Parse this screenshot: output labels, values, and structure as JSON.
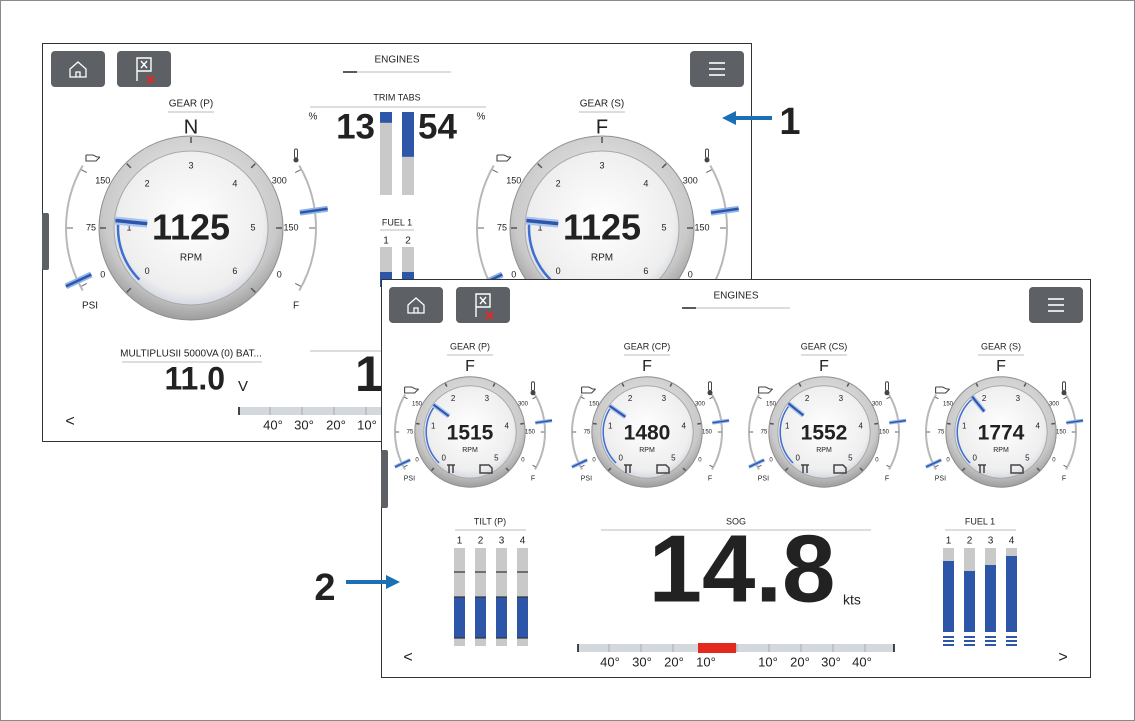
{
  "callouts": [
    "1",
    "2"
  ],
  "screens": [
    {
      "title": "ENGINES",
      "gauges": [
        {
          "gear_label": "GEAR (P)",
          "gear": "N",
          "rpm": 1125
        },
        {
          "gear_label": "GEAR (S)",
          "gear": "F",
          "rpm": 1125
        }
      ],
      "rpm_label": "RPM",
      "rpm_ticks": [
        {
          "value": 0,
          "label": "0"
        },
        {
          "value": 1000,
          "label": "1"
        },
        {
          "value": 2000,
          "label": "2"
        },
        {
          "value": 3000,
          "label": "3"
        },
        {
          "value": 4000,
          "label": "4"
        },
        {
          "value": 5000,
          "label": "5"
        },
        {
          "value": 6000,
          "label": "6"
        }
      ],
      "pressure_ticks": [
        150,
        75,
        0
      ],
      "pressure_unit": "PSI",
      "temp_ticks": [
        300,
        150,
        0
      ],
      "temp_unit": "F",
      "trim_tabs": {
        "title": "TRIM TABS",
        "unit": "%",
        "values": [
          13,
          54
        ]
      },
      "fuel": {
        "title": "FUEL 1",
        "tanks": [
          "1",
          "2"
        ]
      },
      "battery": {
        "title": "MULTIPLUSII 5000VA (0) BAT...",
        "value": "11.0",
        "unit": "V"
      },
      "partial_value": "1",
      "rudder": [
        "40°",
        "30°",
        "20°",
        "10°"
      ],
      "nav": [
        "<"
      ]
    },
    {
      "title": "ENGINES",
      "gauges": [
        {
          "gear_label": "GEAR (P)",
          "gear": "F",
          "rpm": 1515
        },
        {
          "gear_label": "GEAR (CP)",
          "gear": "F",
          "rpm": 1480
        },
        {
          "gear_label": "GEAR (CS)",
          "gear": "F",
          "rpm": 1552
        },
        {
          "gear_label": "GEAR (S)",
          "gear": "F",
          "rpm": 1774
        }
      ],
      "rpm_label": "RPM",
      "rpm_ticks": [
        {
          "value": 0,
          "label": "0"
        },
        {
          "value": 1000,
          "label": "1"
        },
        {
          "value": 2000,
          "label": "2"
        },
        {
          "value": 3000,
          "label": "3"
        },
        {
          "value": 4000,
          "label": "4"
        },
        {
          "value": 5000,
          "label": "5"
        }
      ],
      "pressure_ticks": [
        150,
        75,
        0
      ],
      "pressure_unit": "PSI",
      "temp_ticks": [
        300,
        150,
        0
      ],
      "temp_unit": "F",
      "tilt": {
        "title": "TILT (P)",
        "legs": [
          "1",
          "2",
          "3",
          "4"
        ]
      },
      "sog": {
        "title": "SOG",
        "value": 14.8,
        "unit": "kts"
      },
      "fuel": {
        "title": "FUEL 1",
        "tanks": [
          "1",
          "2",
          "3",
          "4"
        ]
      },
      "rudder": [
        "40°",
        "30°",
        "20°",
        "10°",
        "10°",
        "20°",
        "30°",
        "40°"
      ],
      "nav": [
        "<",
        ">"
      ]
    }
  ]
}
